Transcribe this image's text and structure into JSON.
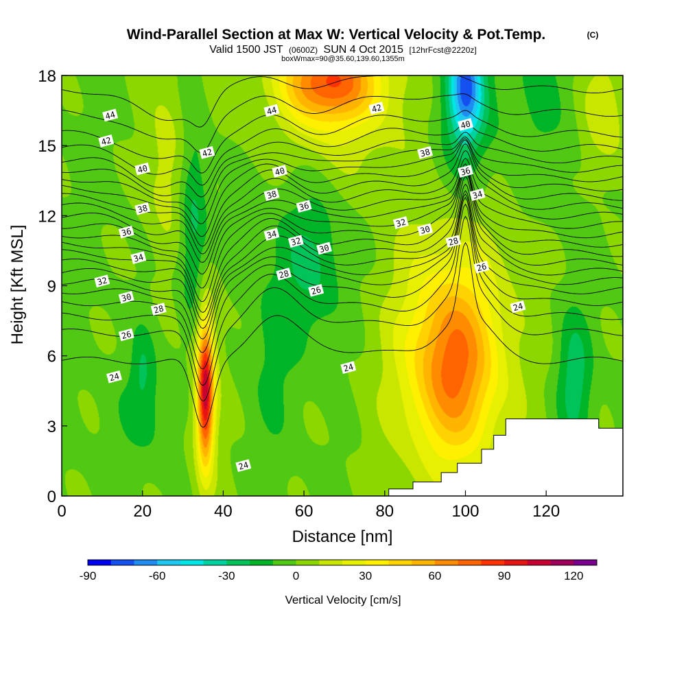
{
  "chart_data": {
    "type": "heatmap",
    "title": "Wind-Parallel Section at Max W: Vertical Velocity & Pot.Temp.",
    "copyright": "(C)",
    "subtitle_valid": "Valid 1500 JST",
    "subtitle_utc": "(0600Z)",
    "subtitle_date": "SUN 4 Oct 2015",
    "subtitle_fcst": "[12hrFcst@2220z]",
    "subtitle2": "boxWmax=90@35.60,139.60,1355m",
    "xlabel": "Distance [nm]",
    "ylabel": "Height [Kft MSL]",
    "xlim": [
      0,
      139
    ],
    "ylim": [
      0,
      18
    ],
    "x_ticks": [
      0,
      20,
      40,
      60,
      80,
      100,
      120
    ],
    "y_ticks": [
      0,
      3,
      6,
      9,
      12,
      15,
      18
    ],
    "colorbar": {
      "label": "Vertical Velocity [cm/s]",
      "min": -90,
      "max": 130,
      "step": 10,
      "tick_values": [
        -90,
        -60,
        -30,
        0,
        30,
        60,
        90,
        120
      ],
      "tick_labels": [
        "-90",
        "-60",
        "-30",
        "0",
        "30",
        "60",
        "90",
        "120"
      ],
      "colors": [
        "#0000f0",
        "#1450f0",
        "#1e8cf0",
        "#1ec8f0",
        "#00e6e6",
        "#00d2a0",
        "#00c35a",
        "#00b428",
        "#50c814",
        "#8cd700",
        "#c8e600",
        "#e6f000",
        "#fff000",
        "#ffd200",
        "#ffb400",
        "#ff8c00",
        "#ff6400",
        "#ff3200",
        "#e61414",
        "#c80032",
        "#a0005a",
        "#78008c"
      ]
    },
    "vertical_velocity_features": [
      {
        "kind": "updraft",
        "x": 35.5,
        "y": 4.5,
        "sx": 1.4,
        "sy": 2.1,
        "amp": 96
      },
      {
        "kind": "updraft",
        "x": 35.5,
        "y": 4.5,
        "sx": 3.2,
        "sy": 3.6,
        "amp": 18
      },
      {
        "kind": "updraft",
        "x": 97,
        "y": 5.6,
        "sx": 7.5,
        "sy": 2.8,
        "amp": 58
      },
      {
        "kind": "updraft",
        "x": 96,
        "y": 6.5,
        "sx": 13,
        "sy": 4.8,
        "amp": 20
      },
      {
        "kind": "updraft",
        "x": 66,
        "y": 17.8,
        "sx": 8,
        "sy": 1.2,
        "amp": 62
      },
      {
        "kind": "updraft",
        "x": 67,
        "y": 17,
        "sx": 14,
        "sy": 2.3,
        "amp": 25
      },
      {
        "kind": "updraft",
        "x": 26,
        "y": 14,
        "sx": 4,
        "sy": 3,
        "amp": 18
      },
      {
        "kind": "updraft",
        "x": 134,
        "y": 16.5,
        "sx": 4,
        "sy": 2,
        "amp": 22
      },
      {
        "kind": "downdraft",
        "x": 100,
        "y": 17.6,
        "sx": 2.8,
        "sy": 1.6,
        "amp": -55
      },
      {
        "kind": "downdraft",
        "x": 100,
        "y": 16.5,
        "sx": 6,
        "sy": 2.5,
        "amp": -22
      },
      {
        "kind": "downdraft",
        "x": 32.5,
        "y": 11.5,
        "sx": 2.5,
        "sy": 3.5,
        "amp": -25
      },
      {
        "kind": "downdraft",
        "x": 62,
        "y": 10,
        "sx": 6,
        "sy": 2.5,
        "amp": -20
      },
      {
        "kind": "downdraft",
        "x": 127,
        "y": 5,
        "sx": 3,
        "sy": 2,
        "amp": -25
      },
      {
        "kind": "downdraft",
        "x": 52,
        "y": 6,
        "sx": 4,
        "sy": 3,
        "amp": -10
      },
      {
        "kind": "downdraft",
        "x": 21,
        "y": 3.5,
        "sx": 6,
        "sy": 1.5,
        "amp": -10
      },
      {
        "kind": "downdraft",
        "x": 20,
        "y": 5.5,
        "sx": 2,
        "sy": 1.2,
        "amp": -15
      },
      {
        "kind": "downdraft",
        "x": 120,
        "y": 17,
        "sx": 6,
        "sy": 3,
        "amp": -10
      },
      {
        "kind": "downdraft",
        "x": 52,
        "y": 16.5,
        "sx": 4,
        "sy": 2,
        "amp": -8
      }
    ],
    "vertical_velocity_background": -2,
    "terrain": [
      [
        0,
        0
      ],
      [
        81,
        0
      ],
      [
        81,
        0.3
      ],
      [
        87,
        0.3
      ],
      [
        87,
        0.6
      ],
      [
        94,
        0.6
      ],
      [
        94,
        1.0
      ],
      [
        98,
        1.0
      ],
      [
        98,
        1.4
      ],
      [
        104,
        1.4
      ],
      [
        104,
        2.0
      ],
      [
        107,
        2.0
      ],
      [
        107,
        2.6
      ],
      [
        110,
        2.6
      ],
      [
        110,
        3.3
      ],
      [
        133,
        3.3
      ],
      [
        133,
        2.9
      ],
      [
        139,
        2.9
      ],
      [
        139,
        0
      ]
    ],
    "pot_temp_contours": {
      "levels": [
        24,
        25,
        26,
        27,
        28,
        29,
        30,
        31,
        32,
        33,
        34,
        35,
        36,
        37,
        38,
        39,
        40,
        41,
        42,
        43,
        44,
        45,
        46
      ],
      "base_heights_kft": [
        5.8,
        7.0,
        7.7,
        8.3,
        8.8,
        9.2,
        9.6,
        10.0,
        10.4,
        10.8,
        11.2,
        11.6,
        12.0,
        12.4,
        12.8,
        13.2,
        13.6,
        14.0,
        14.4,
        14.9,
        15.5,
        16.4,
        17.4
      ],
      "perturbations": [
        {
          "x": 35,
          "sx": 2.5,
          "dy_low": -3.0,
          "dy_high": -1.0
        },
        {
          "x": 25,
          "sx": 7,
          "dy_low": 0.0,
          "dy_high": -1.3
        },
        {
          "x": 52,
          "sx": 6,
          "dy_low": 1.5,
          "dy_high": 0.7
        },
        {
          "x": 62,
          "sx": 10,
          "dy_low": 0.5,
          "dy_high": -0.3
        },
        {
          "x": 82,
          "sx": 12,
          "dy_low": 0.2,
          "dy_high": 0.8
        },
        {
          "x": 100,
          "sx": 6,
          "dy_low": 2.0,
          "dy_high": 0.2
        },
        {
          "x": 100,
          "sx": 1.5,
          "dy_low": 3.0,
          "dy_high": 0.0
        }
      ],
      "labels": [
        {
          "x": 12,
          "y": 16.3,
          "text": "44"
        },
        {
          "x": 11,
          "y": 15.2,
          "text": "42"
        },
        {
          "x": 20,
          "y": 14.0,
          "text": "40"
        },
        {
          "x": 20,
          "y": 12.3,
          "text": "38"
        },
        {
          "x": 16,
          "y": 11.3,
          "text": "36"
        },
        {
          "x": 19,
          "y": 10.2,
          "text": "34"
        },
        {
          "x": 10,
          "y": 9.2,
          "text": "32"
        },
        {
          "x": 16,
          "y": 8.5,
          "text": "30"
        },
        {
          "x": 24,
          "y": 8.0,
          "text": "28"
        },
        {
          "x": 16,
          "y": 6.9,
          "text": "26"
        },
        {
          "x": 13,
          "y": 5.1,
          "text": "24"
        },
        {
          "x": 36,
          "y": 14.7,
          "text": "42"
        },
        {
          "x": 52,
          "y": 16.5,
          "text": "44"
        },
        {
          "x": 78,
          "y": 16.6,
          "text": "42"
        },
        {
          "x": 54,
          "y": 13.9,
          "text": "40"
        },
        {
          "x": 52,
          "y": 12.9,
          "text": "38"
        },
        {
          "x": 60,
          "y": 12.4,
          "text": "36"
        },
        {
          "x": 52,
          "y": 11.2,
          "text": "34"
        },
        {
          "x": 58,
          "y": 10.9,
          "text": "32"
        },
        {
          "x": 65,
          "y": 10.6,
          "text": "30"
        },
        {
          "x": 55,
          "y": 9.5,
          "text": "28"
        },
        {
          "x": 63,
          "y": 8.8,
          "text": "26"
        },
        {
          "x": 71,
          "y": 5.5,
          "text": "24"
        },
        {
          "x": 45,
          "y": 1.3,
          "text": "24"
        },
        {
          "x": 90,
          "y": 14.7,
          "text": "38"
        },
        {
          "x": 100,
          "y": 15.9,
          "text": "40"
        },
        {
          "x": 100,
          "y": 13.9,
          "text": "36"
        },
        {
          "x": 103,
          "y": 12.9,
          "text": "34"
        },
        {
          "x": 84,
          "y": 11.7,
          "text": "32"
        },
        {
          "x": 90,
          "y": 11.4,
          "text": "30"
        },
        {
          "x": 97,
          "y": 10.9,
          "text": "28"
        },
        {
          "x": 104,
          "y": 9.8,
          "text": "26"
        },
        {
          "x": 113,
          "y": 8.1,
          "text": "24"
        }
      ]
    }
  }
}
